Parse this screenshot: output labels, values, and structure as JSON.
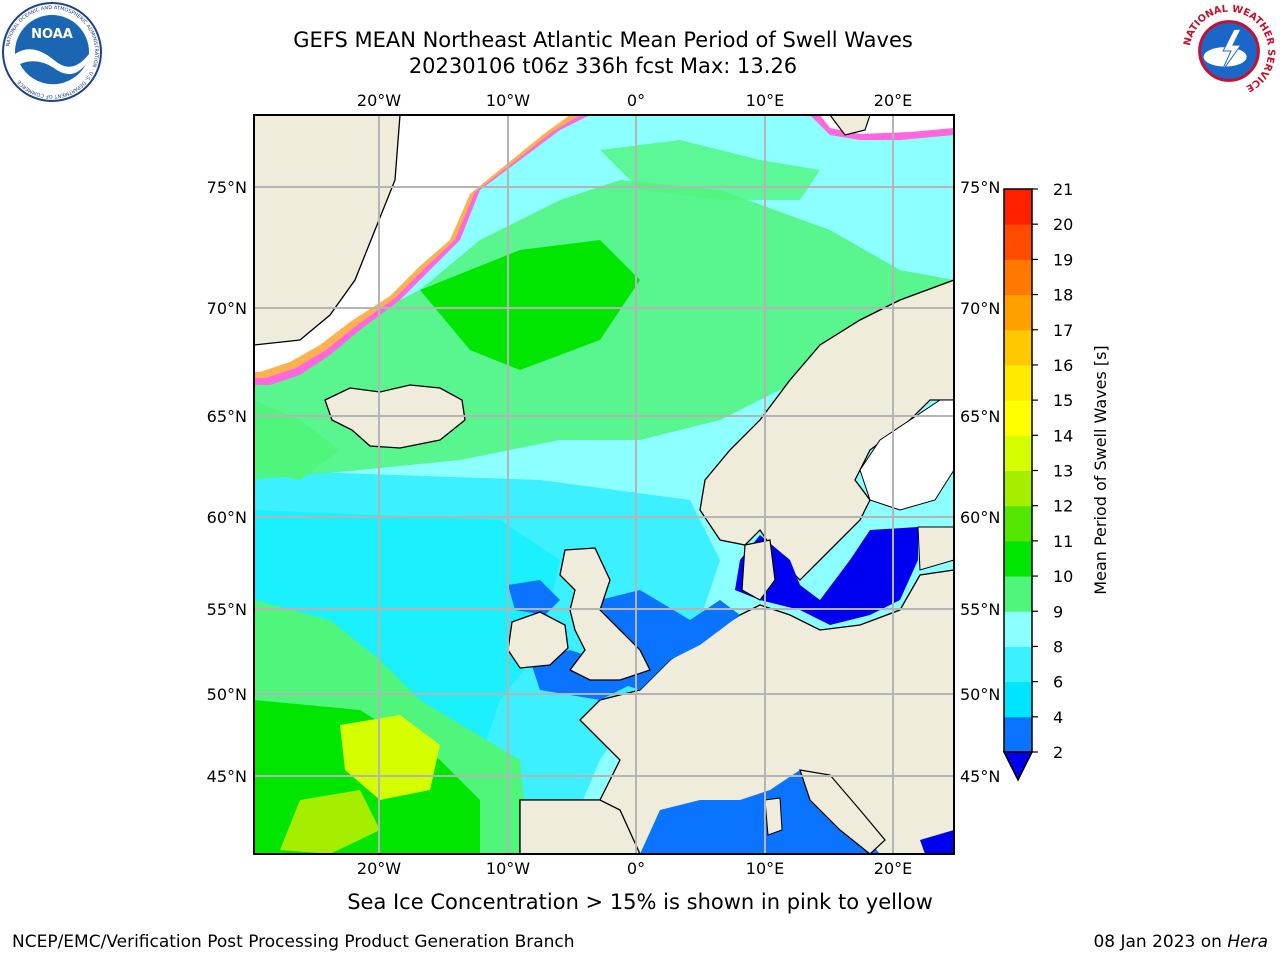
{
  "header": {
    "title_line1": "GEFS MEAN Northeast Atlantic Mean Period of Swell Waves",
    "title_line2": "20230106 t06z 336h fcst   Max: 13.26"
  },
  "logos": {
    "left": {
      "text": "NOAA",
      "ring_text": "NATIONAL OCEANIC AND ATMOSPHERIC ADMINISTRATION · U.S. DEPARTMENT OF COMMERCE"
    },
    "right": {
      "ring_text": "NATIONAL WEATHER SERVICE"
    }
  },
  "map": {
    "lon_labels_top": [
      "20°W",
      "10°W",
      "0°",
      "10°E",
      "20°E"
    ],
    "lon_labels_bottom": [
      "20°W",
      "10°W",
      "0°",
      "10°E",
      "20°E"
    ],
    "lat_labels_left": [
      "75°N",
      "70°N",
      "65°N",
      "60°N",
      "55°N",
      "50°N",
      "45°N"
    ],
    "lat_labels_right": [
      "75°N",
      "70°N",
      "65°N",
      "60°N",
      "55°N",
      "50°N",
      "45°N"
    ],
    "colors": {
      "land": "#efecdc",
      "ice_white": "#ffffff",
      "ice_pink": "#ff44dd",
      "ice_orange": "#ffa040",
      "grid": "#b4b4b4"
    }
  },
  "colorbar": {
    "label": "Mean Period of Swell Waves [s]",
    "ticks": [
      "2",
      "4",
      "6",
      "8",
      "9",
      "10",
      "11",
      "12",
      "13",
      "14",
      "15",
      "16",
      "17",
      "18",
      "19",
      "20",
      "21"
    ],
    "colors": [
      "#0a73ff",
      "#00e5ff",
      "#3cf0ff",
      "#8cffff",
      "#50f57c",
      "#00e600",
      "#55e600",
      "#a5ee00",
      "#d5ff00",
      "#ffff00",
      "#ffea00",
      "#ffc800",
      "#ffa000",
      "#ff7800",
      "#ff4b00",
      "#ff2000"
    ],
    "under_color": "#0000f0"
  },
  "footer": {
    "caption": "Sea Ice Concentration > 15% is shown in pink to yellow",
    "credit": "NCEP/EMC/Verification Post Processing Product Generation Branch",
    "date": "08 Jan 2023 on ",
    "host": "Hera"
  }
}
